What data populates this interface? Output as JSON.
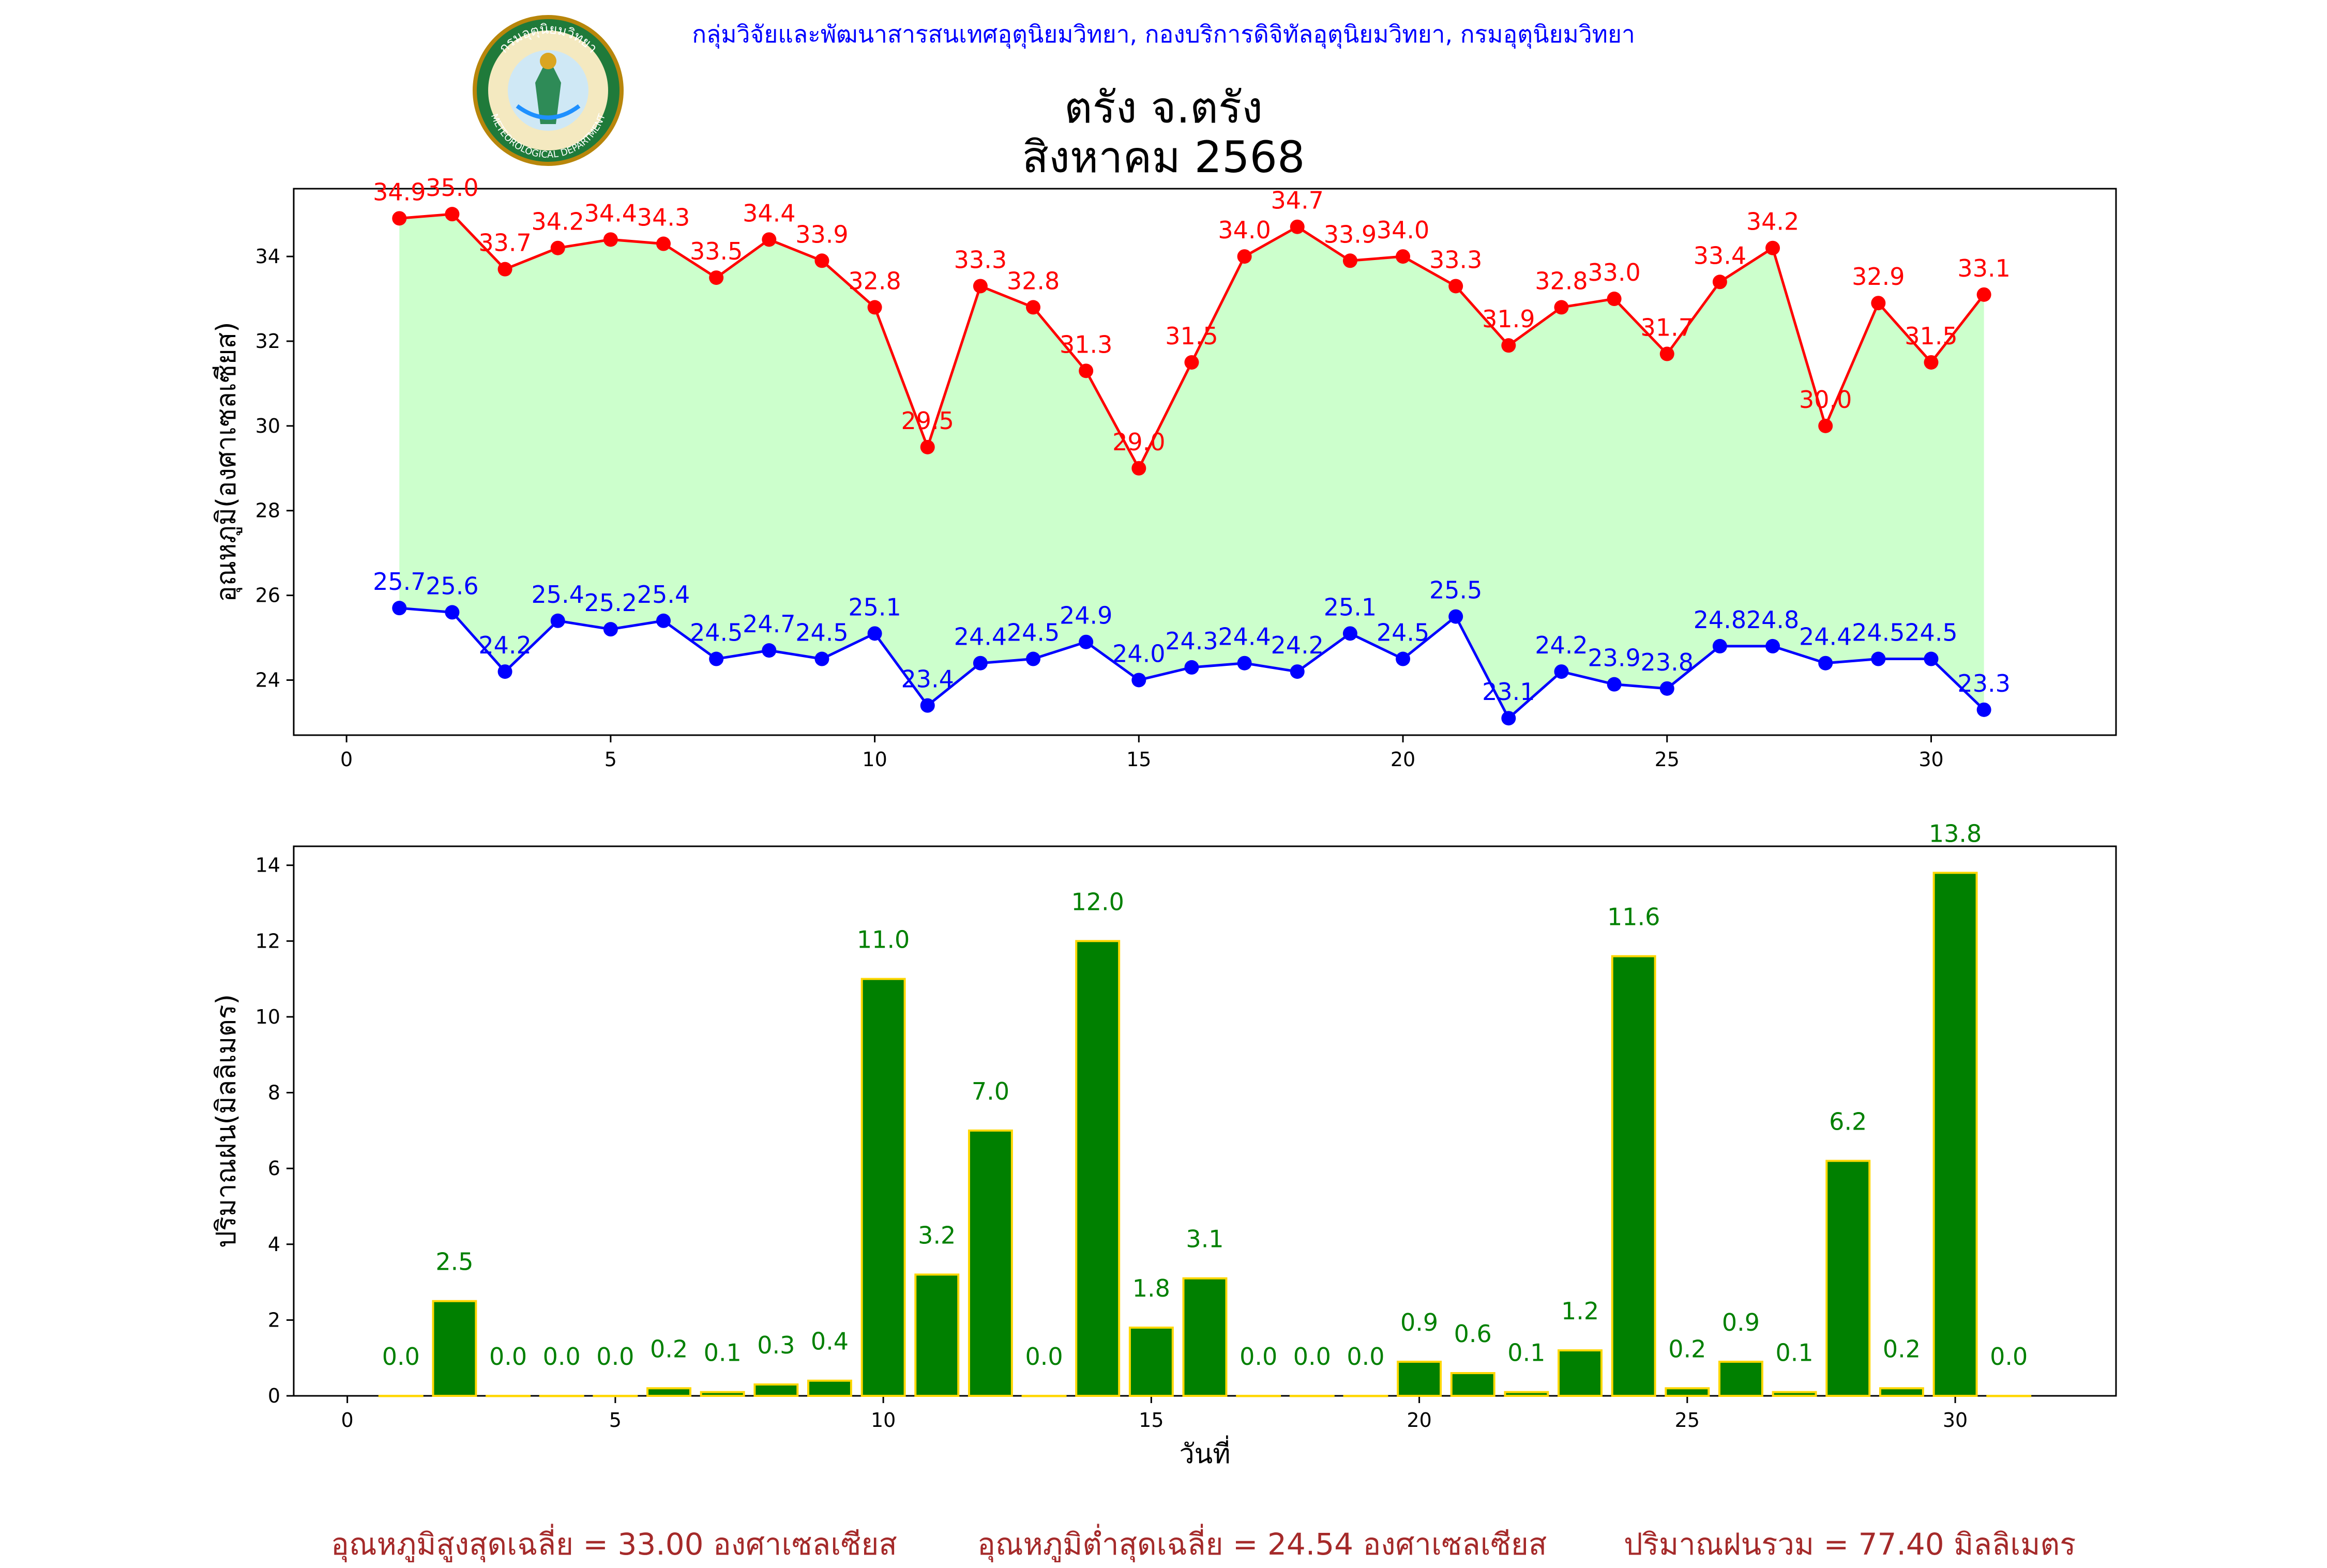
{
  "header": {
    "credit": "กลุ่มวิจัยและพัฒนาสารสนเทศอุตุนิยมวิทยา, กองบริการดิจิทัลอุตุนิยมวิทยา, กรมอุตุนิยมวิทยา",
    "logo_text": "กรมอุตุนิยมวิทยา",
    "logo_text_en": "METEOROLOGICAL DEPARTMENT",
    "logo_icon": "meteorological-department-seal"
  },
  "title_line1": "ตรัง จ.ตรัง",
  "title_line2": "สิงหาคม 2568",
  "chart_data": [
    {
      "type": "line",
      "ylabel": "อุณหภูมิ(องศาเซลเซียส)",
      "xlim": [
        -1,
        33.5
      ],
      "ylim": [
        22.7,
        35.6
      ],
      "xticks": [
        0,
        5,
        10,
        15,
        20,
        25,
        30
      ],
      "yticks": [
        24,
        26,
        28,
        30,
        32,
        34
      ],
      "grid": false,
      "fill_between_series": "#ccffcc",
      "x": [
        1,
        2,
        3,
        4,
        5,
        6,
        7,
        8,
        9,
        10,
        11,
        12,
        13,
        14,
        15,
        16,
        17,
        18,
        19,
        20,
        21,
        22,
        23,
        24,
        25,
        26,
        27,
        28,
        29,
        30,
        31
      ],
      "series": [
        {
          "color": "#ff0000",
          "values": [
            34.9,
            35.0,
            33.7,
            34.2,
            34.4,
            34.3,
            33.5,
            34.4,
            33.9,
            32.8,
            29.5,
            33.3,
            32.8,
            31.3,
            29.0,
            31.5,
            34.0,
            34.7,
            33.9,
            34.0,
            33.3,
            31.9,
            32.8,
            33.0,
            31.7,
            33.4,
            34.2,
            30.0,
            32.9,
            31.5,
            33.1
          ]
        },
        {
          "color": "#0000ff",
          "values": [
            25.7,
            25.6,
            24.2,
            25.4,
            25.2,
            25.4,
            24.5,
            24.7,
            24.5,
            25.1,
            23.4,
            24.4,
            24.5,
            24.9,
            24.0,
            24.3,
            24.4,
            24.2,
            25.1,
            24.5,
            25.5,
            23.1,
            24.2,
            23.9,
            23.8,
            24.8,
            24.8,
            24.4,
            24.5,
            24.5,
            23.3
          ]
        }
      ]
    },
    {
      "type": "bar",
      "xlabel": "วันที่",
      "ylabel": "ปริมาณฝน(มิลลิเมตร)",
      "xlim": [
        -1,
        33
      ],
      "ylim": [
        0,
        14.5
      ],
      "xticks": [
        0,
        5,
        10,
        15,
        20,
        25,
        30
      ],
      "yticks": [
        0,
        2,
        4,
        6,
        8,
        10,
        12,
        14
      ],
      "grid": false,
      "bar_color": "#008000",
      "edge_color": "#ffd700",
      "label_color": "#008000",
      "categories": [
        1,
        2,
        3,
        4,
        5,
        6,
        7,
        8,
        9,
        10,
        11,
        12,
        13,
        14,
        15,
        16,
        17,
        18,
        19,
        20,
        21,
        22,
        23,
        24,
        25,
        26,
        27,
        28,
        29,
        30,
        31
      ],
      "values": [
        0.0,
        2.5,
        0.0,
        0.0,
        0.0,
        0.2,
        0.1,
        0.3,
        0.4,
        11.0,
        3.2,
        7.0,
        0.0,
        12.0,
        1.8,
        3.1,
        0.0,
        0.0,
        0.0,
        0.9,
        0.6,
        0.1,
        1.2,
        11.6,
        0.2,
        0.9,
        0.1,
        6.2,
        0.2,
        13.8,
        0.0
      ]
    }
  ],
  "footer": {
    "avg_max": "อุณหภูมิสูงสุดเฉลี่ย = 33.00 องศาเซลเซียส",
    "avg_min": "อุณหภูมิต่ำสุดเฉลี่ย = 24.54 องศาเซลเซียส",
    "total_rain": "ปริมาณฝนรวม = 77.40 มิลลิเมตร"
  }
}
